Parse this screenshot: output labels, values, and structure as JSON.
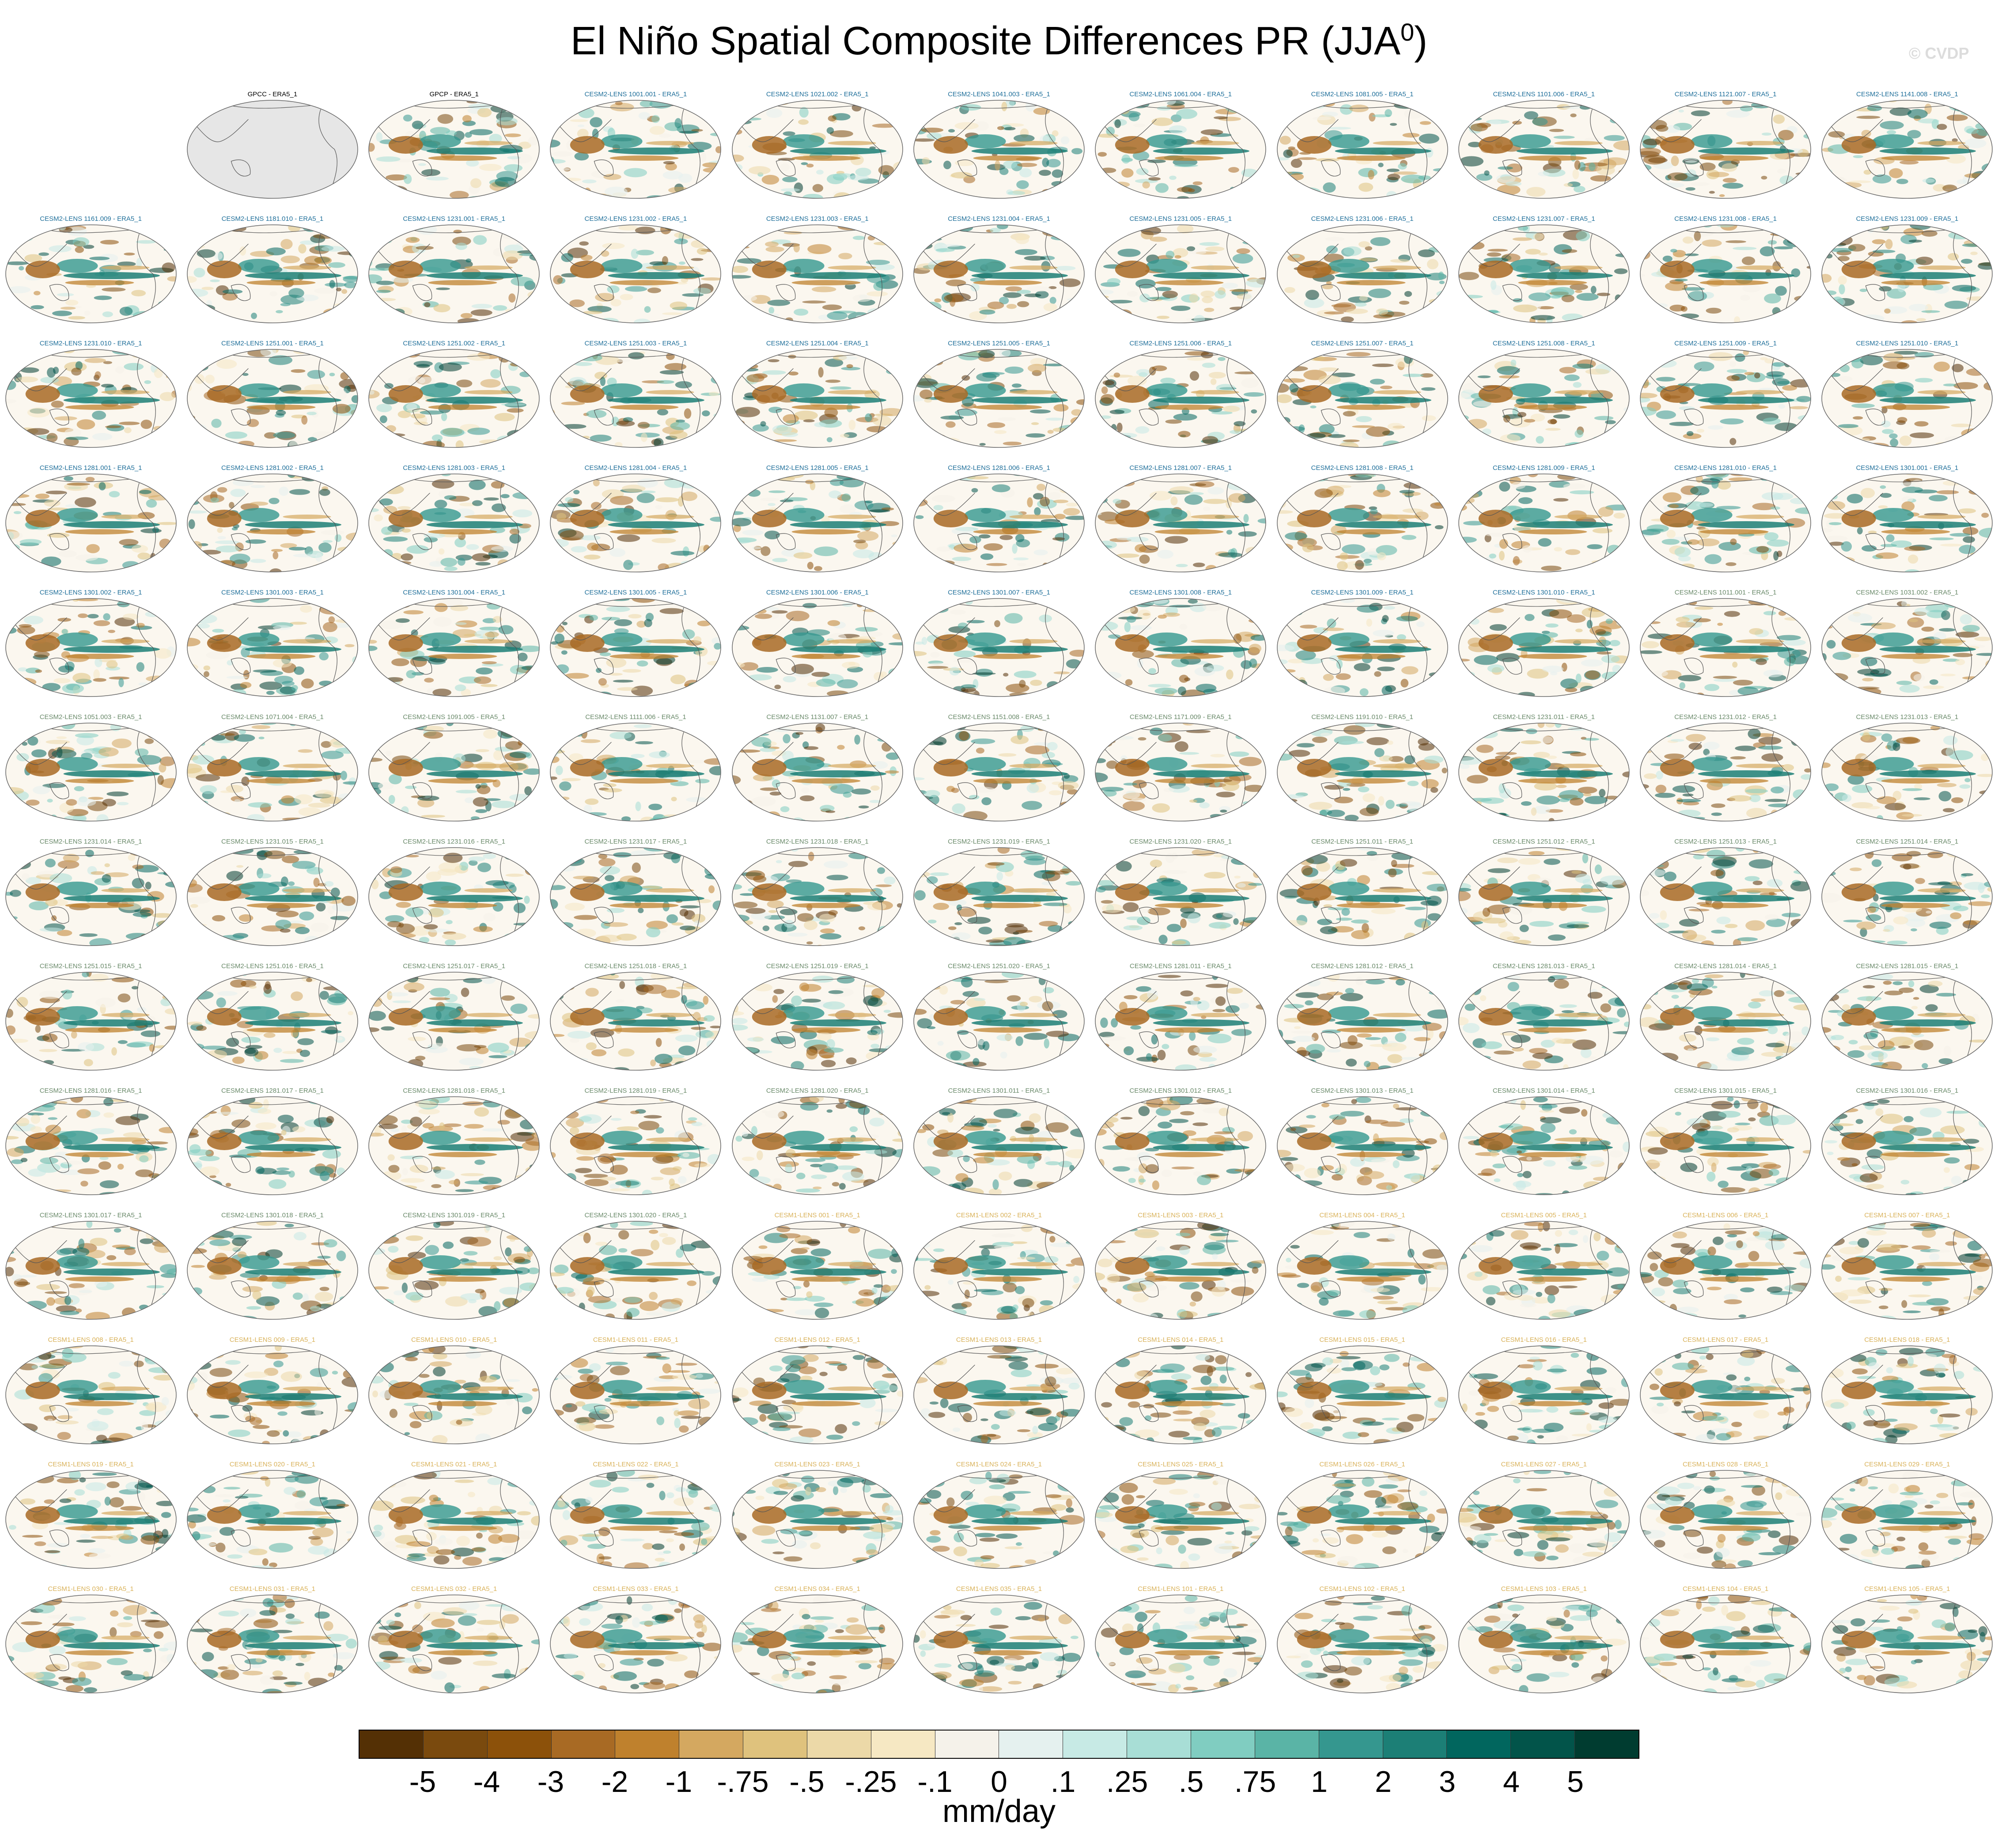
{
  "figure": {
    "title_main": "El Niño Spatial Composite Differences PR (JJA",
    "title_sup": "0",
    "title_close": ")",
    "watermark": "© CVDP",
    "units": "mm/day"
  },
  "colors": {
    "obs_label": "#000000",
    "cesm2_cmip6_label": "#1f6f9a",
    "cesm2_smbb_label": "#6a8a6a",
    "cesm1_label": "#d9b25a",
    "land_fill": "#e6e6e6",
    "ocean_fill": "#fbf7ef",
    "coast": "#555555"
  },
  "colorbar": {
    "colors": [
      "#543005",
      "#7a4a0e",
      "#8c510a",
      "#a86a24",
      "#bf812d",
      "#d4a860",
      "#dfc27d",
      "#ecd9a8",
      "#f6e8c3",
      "#f5f2ea",
      "#e5f1ef",
      "#c7eae5",
      "#a8ded6",
      "#80cdc1",
      "#5ab4a6",
      "#35978f",
      "#1c7f76",
      "#01665e",
      "#02544a",
      "#003c30"
    ],
    "labels": [
      "-5",
      "-4",
      "-3",
      "-2",
      "-1",
      "-.75",
      "-.5",
      "-.25",
      "-.1",
      "0",
      ".1",
      ".25",
      ".5",
      ".75",
      "1",
      "2",
      "3",
      "4",
      "5"
    ]
  },
  "panels": [
    {
      "label": "GPCC - ERA5_1",
      "group": "obs",
      "masked": true
    },
    {
      "label": "GPCP - ERA5_1",
      "group": "obs"
    },
    {
      "label": "CESM2-LENS 1001.001 - ERA5_1",
      "group": "c2a"
    },
    {
      "label": "CESM2-LENS 1021.002 - ERA5_1",
      "group": "c2a"
    },
    {
      "label": "CESM2-LENS 1041.003 - ERA5_1",
      "group": "c2a"
    },
    {
      "label": "CESM2-LENS 1061.004 - ERA5_1",
      "group": "c2a"
    },
    {
      "label": "CESM2-LENS 1081.005 - ERA5_1",
      "group": "c2a"
    },
    {
      "label": "CESM2-LENS 1101.006 - ERA5_1",
      "group": "c2a"
    },
    {
      "label": "CESM2-LENS 1121.007 - ERA5_1",
      "group": "c2a"
    },
    {
      "label": "CESM2-LENS 1141.008 - ERA5_1",
      "group": "c2a"
    },
    {
      "label": "CESM2-LENS 1161.009 - ERA5_1",
      "group": "c2a"
    },
    {
      "label": "CESM2-LENS 1181.010 - ERA5_1",
      "group": "c2a"
    },
    {
      "label": "CESM2-LENS 1231.001 - ERA5_1",
      "group": "c2a"
    },
    {
      "label": "CESM2-LENS 1231.002 - ERA5_1",
      "group": "c2a"
    },
    {
      "label": "CESM2-LENS 1231.003 - ERA5_1",
      "group": "c2a"
    },
    {
      "label": "CESM2-LENS 1231.004 - ERA5_1",
      "group": "c2a"
    },
    {
      "label": "CESM2-LENS 1231.005 - ERA5_1",
      "group": "c2a"
    },
    {
      "label": "CESM2-LENS 1231.006 - ERA5_1",
      "group": "c2a"
    },
    {
      "label": "CESM2-LENS 1231.007 - ERA5_1",
      "group": "c2a"
    },
    {
      "label": "CESM2-LENS 1231.008 - ERA5_1",
      "group": "c2a"
    },
    {
      "label": "CESM2-LENS 1231.009 - ERA5_1",
      "group": "c2a"
    },
    {
      "label": "CESM2-LENS 1231.010 - ERA5_1",
      "group": "c2a"
    },
    {
      "label": "CESM2-LENS 1251.001 - ERA5_1",
      "group": "c2a"
    },
    {
      "label": "CESM2-LENS 1251.002 - ERA5_1",
      "group": "c2a"
    },
    {
      "label": "CESM2-LENS 1251.003 - ERA5_1",
      "group": "c2a"
    },
    {
      "label": "CESM2-LENS 1251.004 - ERA5_1",
      "group": "c2a"
    },
    {
      "label": "CESM2-LENS 1251.005 - ERA5_1",
      "group": "c2a"
    },
    {
      "label": "CESM2-LENS 1251.006 - ERA5_1",
      "group": "c2a"
    },
    {
      "label": "CESM2-LENS 1251.007 - ERA5_1",
      "group": "c2a"
    },
    {
      "label": "CESM2-LENS 1251.008 - ERA5_1",
      "group": "c2a"
    },
    {
      "label": "CESM2-LENS 1251.009 - ERA5_1",
      "group": "c2a"
    },
    {
      "label": "CESM2-LENS 1251.010 - ERA5_1",
      "group": "c2a"
    },
    {
      "label": "CESM2-LENS 1281.001 - ERA5_1",
      "group": "c2a"
    },
    {
      "label": "CESM2-LENS 1281.002 - ERA5_1",
      "group": "c2a"
    },
    {
      "label": "CESM2-LENS 1281.003 - ERA5_1",
      "group": "c2a"
    },
    {
      "label": "CESM2-LENS 1281.004 - ERA5_1",
      "group": "c2a"
    },
    {
      "label": "CESM2-LENS 1281.005 - ERA5_1",
      "group": "c2a"
    },
    {
      "label": "CESM2-LENS 1281.006 - ERA5_1",
      "group": "c2a"
    },
    {
      "label": "CESM2-LENS 1281.007 - ERA5_1",
      "group": "c2a"
    },
    {
      "label": "CESM2-LENS 1281.008 - ERA5_1",
      "group": "c2a"
    },
    {
      "label": "CESM2-LENS 1281.009 - ERA5_1",
      "group": "c2a"
    },
    {
      "label": "CESM2-LENS 1281.010 - ERA5_1",
      "group": "c2a"
    },
    {
      "label": "CESM2-LENS 1301.001 - ERA5_1",
      "group": "c2a"
    },
    {
      "label": "CESM2-LENS 1301.002 - ERA5_1",
      "group": "c2a"
    },
    {
      "label": "CESM2-LENS 1301.003 - ERA5_1",
      "group": "c2a"
    },
    {
      "label": "CESM2-LENS 1301.004 - ERA5_1",
      "group": "c2a"
    },
    {
      "label": "CESM2-LENS 1301.005 - ERA5_1",
      "group": "c2a"
    },
    {
      "label": "CESM2-LENS 1301.006 - ERA5_1",
      "group": "c2a"
    },
    {
      "label": "CESM2-LENS 1301.007 - ERA5_1",
      "group": "c2a"
    },
    {
      "label": "CESM2-LENS 1301.008 - ERA5_1",
      "group": "c2a"
    },
    {
      "label": "CESM2-LENS 1301.009 - ERA5_1",
      "group": "c2a"
    },
    {
      "label": "CESM2-LENS 1301.010 - ERA5_1",
      "group": "c2a"
    },
    {
      "label": "CESM2-LENS 1011.001 - ERA5_1",
      "group": "c2b"
    },
    {
      "label": "CESM2-LENS 1031.002 - ERA5_1",
      "group": "c2b"
    },
    {
      "label": "CESM2-LENS 1051.003 - ERA5_1",
      "group": "c2b"
    },
    {
      "label": "CESM2-LENS 1071.004 - ERA5_1",
      "group": "c2b"
    },
    {
      "label": "CESM2-LENS 1091.005 - ERA5_1",
      "group": "c2b"
    },
    {
      "label": "CESM2-LENS 1111.006 - ERA5_1",
      "group": "c2b"
    },
    {
      "label": "CESM2-LENS 1131.007 - ERA5_1",
      "group": "c2b"
    },
    {
      "label": "CESM2-LENS 1151.008 - ERA5_1",
      "group": "c2b"
    },
    {
      "label": "CESM2-LENS 1171.009 - ERA5_1",
      "group": "c2b"
    },
    {
      "label": "CESM2-LENS 1191.010 - ERA5_1",
      "group": "c2b"
    },
    {
      "label": "CESM2-LENS 1231.011 - ERA5_1",
      "group": "c2b"
    },
    {
      "label": "CESM2-LENS 1231.012 - ERA5_1",
      "group": "c2b"
    },
    {
      "label": "CESM2-LENS 1231.013 - ERA5_1",
      "group": "c2b"
    },
    {
      "label": "CESM2-LENS 1231.014 - ERA5_1",
      "group": "c2b"
    },
    {
      "label": "CESM2-LENS 1231.015 - ERA5_1",
      "group": "c2b"
    },
    {
      "label": "CESM2-LENS 1231.016 - ERA5_1",
      "group": "c2b"
    },
    {
      "label": "CESM2-LENS 1231.017 - ERA5_1",
      "group": "c2b"
    },
    {
      "label": "CESM2-LENS 1231.018 - ERA5_1",
      "group": "c2b"
    },
    {
      "label": "CESM2-LENS 1231.019 - ERA5_1",
      "group": "c2b"
    },
    {
      "label": "CESM2-LENS 1231.020 - ERA5_1",
      "group": "c2b"
    },
    {
      "label": "CESM2-LENS 1251.011 - ERA5_1",
      "group": "c2b"
    },
    {
      "label": "CESM2-LENS 1251.012 - ERA5_1",
      "group": "c2b"
    },
    {
      "label": "CESM2-LENS 1251.013 - ERA5_1",
      "group": "c2b"
    },
    {
      "label": "CESM2-LENS 1251.014 - ERA5_1",
      "group": "c2b"
    },
    {
      "label": "CESM2-LENS 1251.015 - ERA5_1",
      "group": "c2b"
    },
    {
      "label": "CESM2-LENS 1251.016 - ERA5_1",
      "group": "c2b"
    },
    {
      "label": "CESM2-LENS 1251.017 - ERA5_1",
      "group": "c2b"
    },
    {
      "label": "CESM2-LENS 1251.018 - ERA5_1",
      "group": "c2b"
    },
    {
      "label": "CESM2-LENS 1251.019 - ERA5_1",
      "group": "c2b"
    },
    {
      "label": "CESM2-LENS 1251.020 - ERA5_1",
      "group": "c2b"
    },
    {
      "label": "CESM2-LENS 1281.011 - ERA5_1",
      "group": "c2b"
    },
    {
      "label": "CESM2-LENS 1281.012 - ERA5_1",
      "group": "c2b"
    },
    {
      "label": "CESM2-LENS 1281.013 - ERA5_1",
      "group": "c2b"
    },
    {
      "label": "CESM2-LENS 1281.014 - ERA5_1",
      "group": "c2b"
    },
    {
      "label": "CESM2-LENS 1281.015 - ERA5_1",
      "group": "c2b"
    },
    {
      "label": "CESM2-LENS 1281.016 - ERA5_1",
      "group": "c2b"
    },
    {
      "label": "CESM2-LENS 1281.017 - ERA5_1",
      "group": "c2b"
    },
    {
      "label": "CESM2-LENS 1281.018 - ERA5_1",
      "group": "c2b"
    },
    {
      "label": "CESM2-LENS 1281.019 - ERA5_1",
      "group": "c2b"
    },
    {
      "label": "CESM2-LENS 1281.020 - ERA5_1",
      "group": "c2b"
    },
    {
      "label": "CESM2-LENS 1301.011 - ERA5_1",
      "group": "c2b"
    },
    {
      "label": "CESM2-LENS 1301.012 - ERA5_1",
      "group": "c2b"
    },
    {
      "label": "CESM2-LENS 1301.013 - ERA5_1",
      "group": "c2b"
    },
    {
      "label": "CESM2-LENS 1301.014 - ERA5_1",
      "group": "c2b"
    },
    {
      "label": "CESM2-LENS 1301.015 - ERA5_1",
      "group": "c2b"
    },
    {
      "label": "CESM2-LENS 1301.016 - ERA5_1",
      "group": "c2b"
    },
    {
      "label": "CESM2-LENS 1301.017 - ERA5_1",
      "group": "c2b"
    },
    {
      "label": "CESM2-LENS 1301.018 - ERA5_1",
      "group": "c2b"
    },
    {
      "label": "CESM2-LENS 1301.019 - ERA5_1",
      "group": "c2b"
    },
    {
      "label": "CESM2-LENS 1301.020 - ERA5_1",
      "group": "c2b"
    },
    {
      "label": "CESM1-LENS 001 - ERA5_1",
      "group": "c1"
    },
    {
      "label": "CESM1-LENS 002 - ERA5_1",
      "group": "c1"
    },
    {
      "label": "CESM1-LENS 003 - ERA5_1",
      "group": "c1"
    },
    {
      "label": "CESM1-LENS 004 - ERA5_1",
      "group": "c1"
    },
    {
      "label": "CESM1-LENS 005 - ERA5_1",
      "group": "c1"
    },
    {
      "label": "CESM1-LENS 006 - ERA5_1",
      "group": "c1"
    },
    {
      "label": "CESM1-LENS 007 - ERA5_1",
      "group": "c1"
    },
    {
      "label": "CESM1-LENS 008 - ERA5_1",
      "group": "c1"
    },
    {
      "label": "CESM1-LENS 009 - ERA5_1",
      "group": "c1"
    },
    {
      "label": "CESM1-LENS 010 - ERA5_1",
      "group": "c1"
    },
    {
      "label": "CESM1-LENS 011 - ERA5_1",
      "group": "c1"
    },
    {
      "label": "CESM1-LENS 012 - ERA5_1",
      "group": "c1"
    },
    {
      "label": "CESM1-LENS 013 - ERA5_1",
      "group": "c1"
    },
    {
      "label": "CESM1-LENS 014 - ERA5_1",
      "group": "c1"
    },
    {
      "label": "CESM1-LENS 015 - ERA5_1",
      "group": "c1"
    },
    {
      "label": "CESM1-LENS 016 - ERA5_1",
      "group": "c1"
    },
    {
      "label": "CESM1-LENS 017 - ERA5_1",
      "group": "c1"
    },
    {
      "label": "CESM1-LENS 018 - ERA5_1",
      "group": "c1"
    },
    {
      "label": "CESM1-LENS 019 - ERA5_1",
      "group": "c1"
    },
    {
      "label": "CESM1-LENS 020 - ERA5_1",
      "group": "c1"
    },
    {
      "label": "CESM1-LENS 021 - ERA5_1",
      "group": "c1"
    },
    {
      "label": "CESM1-LENS 022 - ERA5_1",
      "group": "c1"
    },
    {
      "label": "CESM1-LENS 023 - ERA5_1",
      "group": "c1"
    },
    {
      "label": "CESM1-LENS 024 - ERA5_1",
      "group": "c1"
    },
    {
      "label": "CESM1-LENS 025 - ERA5_1",
      "group": "c1"
    },
    {
      "label": "CESM1-LENS 026 - ERA5_1",
      "group": "c1"
    },
    {
      "label": "CESM1-LENS 027 - ERA5_1",
      "group": "c1"
    },
    {
      "label": "CESM1-LENS 028 - ERA5_1",
      "group": "c1"
    },
    {
      "label": "CESM1-LENS 029 - ERA5_1",
      "group": "c1"
    },
    {
      "label": "CESM1-LENS 030 - ERA5_1",
      "group": "c1"
    },
    {
      "label": "CESM1-LENS 031 - ERA5_1",
      "group": "c1"
    },
    {
      "label": "CESM1-LENS 032 - ERA5_1",
      "group": "c1"
    },
    {
      "label": "CESM1-LENS 033 - ERA5_1",
      "group": "c1"
    },
    {
      "label": "CESM1-LENS 034 - ERA5_1",
      "group": "c1"
    },
    {
      "label": "CESM1-LENS 035 - ERA5_1",
      "group": "c1"
    },
    {
      "label": "CESM1-LENS 101 - ERA5_1",
      "group": "c1"
    },
    {
      "label": "CESM1-LENS 102 - ERA5_1",
      "group": "c1"
    },
    {
      "label": "CESM1-LENS 103 - ERA5_1",
      "group": "c1"
    },
    {
      "label": "CESM1-LENS 104 - ERA5_1",
      "group": "c1"
    },
    {
      "label": "CESM1-LENS 105 - ERA5_1",
      "group": "c1"
    }
  ]
}
